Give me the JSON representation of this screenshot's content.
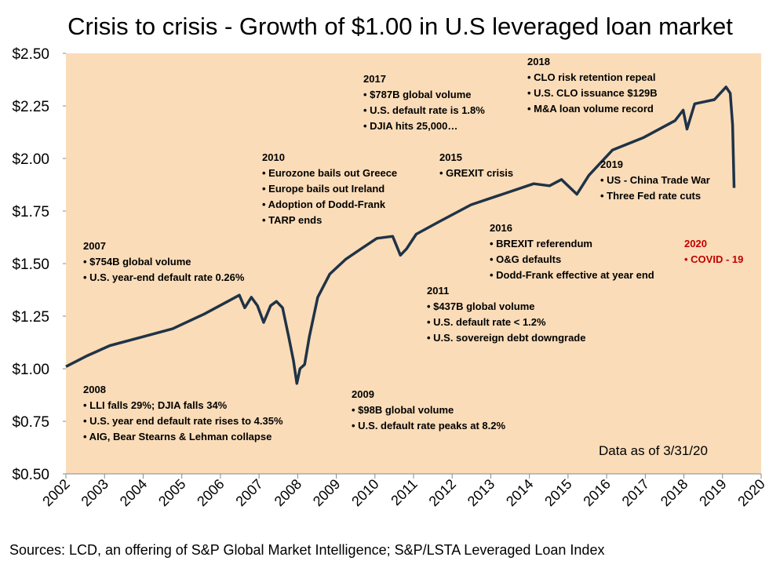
{
  "chart_data": {
    "type": "line",
    "title": "Crisis to crisis - Growth of $1.00 in U.S leveraged loan market",
    "source": "Sources: LCD, an offering of S&P Global Market Intelligence; S&P/LSTA Leveraged Loan Index",
    "note": "Data as of 3/31/20",
    "xlim": [
      2002,
      2020
    ],
    "xticks": [
      2002,
      2003,
      2004,
      2005,
      2006,
      2007,
      2008,
      2009,
      2010,
      2011,
      2012,
      2013,
      2014,
      2015,
      2016,
      2017,
      2018,
      2019,
      2020
    ],
    "ylim": [
      0.5,
      2.5
    ],
    "yticks": [
      {
        "value": 0.5,
        "label": "$0.50"
      },
      {
        "value": 0.75,
        "label": "$0.75"
      },
      {
        "value": 1.0,
        "label": "$1.00"
      },
      {
        "value": 1.25,
        "label": "$1.25"
      },
      {
        "value": 1.5,
        "label": "$1.50"
      },
      {
        "value": 1.75,
        "label": "$1.75"
      },
      {
        "value": 2.0,
        "label": "$2.00"
      },
      {
        "value": 2.25,
        "label": "$2.25"
      },
      {
        "value": 2.5,
        "label": "$2.50"
      }
    ],
    "background": "#fadcb8",
    "series": [
      {
        "color": "#1f3347",
        "x": [
          2002.0,
          2002.53,
          2003.14,
          2003.95,
          2004.76,
          2005.58,
          2006.19,
          2006.49,
          2006.63,
          2006.8,
          2006.96,
          2007.12,
          2007.3,
          2007.45,
          2007.61,
          2007.77,
          2007.89,
          2007.98,
          2008.06,
          2008.18,
          2008.3,
          2008.52,
          2008.83,
          2009.24,
          2009.64,
          2010.05,
          2010.46,
          2010.66,
          2010.82,
          2011.07,
          2011.67,
          2012.49,
          2013.3,
          2014.11,
          2014.52,
          2014.83,
          2015.23,
          2015.54,
          2016.15,
          2016.96,
          2017.77,
          2017.98,
          2018.08,
          2018.28,
          2018.79,
          2019.09,
          2019.2,
          2019.26,
          2019.3
        ],
        "values": [
          1.01,
          1.06,
          1.11,
          1.15,
          1.19,
          1.26,
          1.32,
          1.35,
          1.29,
          1.34,
          1.3,
          1.22,
          1.3,
          1.32,
          1.29,
          1.15,
          1.04,
          0.93,
          1.0,
          1.02,
          1.15,
          1.34,
          1.45,
          1.52,
          1.57,
          1.62,
          1.63,
          1.54,
          1.57,
          1.64,
          1.7,
          1.78,
          1.83,
          1.88,
          1.87,
          1.9,
          1.83,
          1.92,
          2.04,
          2.1,
          2.18,
          2.23,
          2.14,
          2.26,
          2.28,
          2.34,
          2.31,
          2.16,
          1.86
        ]
      }
    ],
    "annotations": [
      {
        "title": "2007",
        "lines": [
          "• $754B global volume",
          "• U.S. year-end default rate 0.26%"
        ]
      },
      {
        "title": "2008",
        "lines": [
          "• LLI falls 29%; DJIA falls 34%",
          "• U.S. year end default rate rises to 4.35%",
          "• AIG, Bear Stearns & Lehman  collapse"
        ]
      },
      {
        "title": "2009",
        "lines": [
          "• $98B global volume",
          "• U.S. default rate peaks at 8.2%"
        ]
      },
      {
        "title": "2010",
        "lines": [
          "• Eurozone bails out Greece",
          "• Europe bails out Ireland",
          "• Adoption of Dodd-Frank",
          "• TARP ends"
        ]
      },
      {
        "title": "2011",
        "lines": [
          "• $437B global volume",
          "• U.S. default rate < 1.2%",
          "• U.S. sovereign debt downgrade"
        ]
      },
      {
        "title": "2015",
        "lines": [
          "• GREXIT crisis"
        ]
      },
      {
        "title": "2016",
        "lines": [
          "• BREXIT referendum",
          "• O&G defaults",
          "• Dodd-Frank effective at year end"
        ]
      },
      {
        "title": "2017",
        "lines": [
          "• $787B global volume",
          "• U.S. default rate is 1.8%",
          "• DJIA hits 25,000…"
        ]
      },
      {
        "title": "2018",
        "lines": [
          " • CLO risk retention repeal",
          "• U.S. CLO issuance $129B",
          "• M&A loan volume record"
        ]
      },
      {
        "title": "2019",
        "lines": [
          "• US - China Trade War",
          "• Three Fed rate cuts"
        ]
      },
      {
        "title": "2020",
        "lines": [
          "• COVID - 19"
        ],
        "color": "#c00000"
      }
    ]
  }
}
